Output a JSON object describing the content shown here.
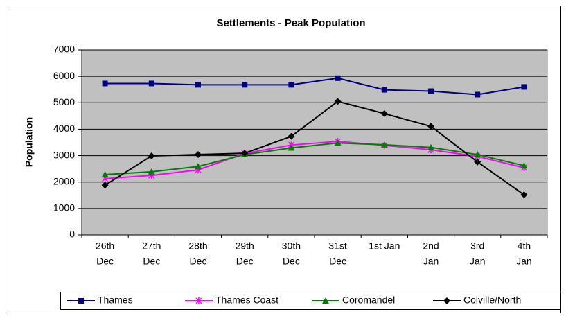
{
  "chart_data": {
    "type": "line",
    "title": "Settlements - Peak Population",
    "y_label": "Population",
    "categories": [
      [
        "26th",
        "Dec"
      ],
      [
        "27th",
        "Dec"
      ],
      [
        "28th",
        "Dec"
      ],
      [
        "29th",
        "Dec"
      ],
      [
        "30th",
        "Dec"
      ],
      [
        "31st",
        "Dec"
      ],
      [
        "1st  Jan"
      ],
      [
        "2nd",
        "Jan"
      ],
      [
        "3rd",
        "Jan"
      ],
      [
        "4th",
        "Jan"
      ]
    ],
    "series": [
      {
        "name": "Thames",
        "color": "#000080",
        "marker": "square",
        "values": [
          5730,
          5730,
          5680,
          5680,
          5680,
          5930,
          5490,
          5440,
          5310,
          5600
        ]
      },
      {
        "name": "Thames Coast",
        "color": "#ff00ff",
        "marker": "asterisk",
        "values": [
          2130,
          2250,
          2460,
          3080,
          3400,
          3540,
          3390,
          3220,
          2970,
          2540
        ]
      },
      {
        "name": "Coromandel",
        "color": "#008000",
        "marker": "triangle",
        "values": [
          2280,
          2390,
          2590,
          3040,
          3290,
          3480,
          3410,
          3310,
          3040,
          2620
        ]
      },
      {
        "name": "Colville/North",
        "color": "#000000",
        "marker": "diamond",
        "values": [
          1880,
          2990,
          3040,
          3090,
          3730,
          5050,
          4590,
          4110,
          2760,
          1520
        ]
      }
    ],
    "ylim": [
      0,
      7000
    ],
    "yticks": [
      0,
      1000,
      2000,
      3000,
      4000,
      5000,
      6000,
      7000
    ],
    "grid": true,
    "legend": "bottom"
  }
}
